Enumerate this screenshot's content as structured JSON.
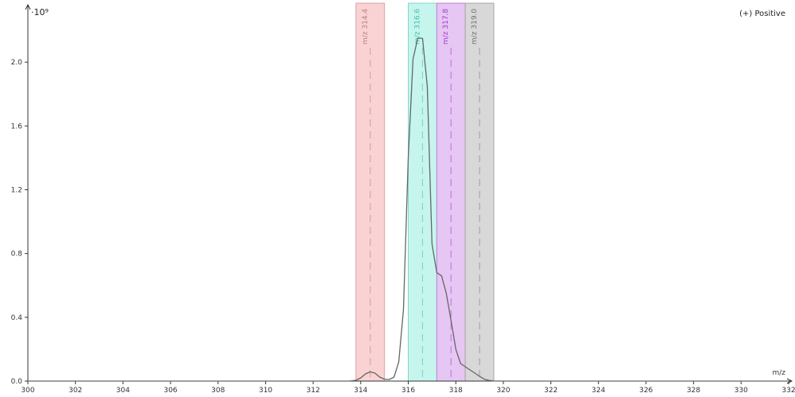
{
  "chart_data": {
    "type": "line",
    "title": "",
    "mode_label": "(+) Positive",
    "y_scale_label": "·10⁹",
    "xlabel": "m/z",
    "ylabel": "",
    "xlim": [
      300,
      332
    ],
    "ylim": [
      0,
      2.36
    ],
    "x_ticks": [
      300,
      302,
      304,
      306,
      308,
      310,
      312,
      314,
      316,
      318,
      320,
      322,
      324,
      326,
      328,
      330,
      332
    ],
    "y_ticks": [
      0.0,
      0.4,
      0.8,
      1.2,
      1.6,
      2.0
    ],
    "x_tick_labels": [
      "300",
      "302",
      "304",
      "306",
      "308",
      "310",
      "312",
      "314",
      "316",
      "318",
      "320",
      "322",
      "324",
      "326",
      "328",
      "330",
      "332"
    ],
    "y_tick_labels": [
      "0.0",
      "0.4",
      "0.8",
      "1.2",
      "1.6",
      "2.0"
    ],
    "grid": false,
    "bands": [
      {
        "label": "m/z 314.4",
        "center": 314.4,
        "from": 313.8,
        "to": 315.0,
        "fill": "#f9d3d3",
        "stroke": "#e0a0a0",
        "text_color": "#c08080"
      },
      {
        "label": "m/z 316.6",
        "center": 316.6,
        "from": 316.0,
        "to": 317.2,
        "fill": "#c6f5ee",
        "stroke": "#7fd9c9",
        "text_color": "#3fbfaa"
      },
      {
        "label": "m/z 317.8",
        "center": 317.8,
        "from": 317.2,
        "to": 318.4,
        "fill": "#e6c6f2",
        "stroke": "#c080e0",
        "text_color": "#a040d0"
      },
      {
        "label": "m/z 319.0",
        "center": 319.0,
        "from": 318.4,
        "to": 319.6,
        "fill": "#d8d8d8",
        "stroke": "#a8a8a8",
        "text_color": "#707070"
      }
    ],
    "series": [
      {
        "color": "#666666",
        "x": [
          300,
          313.5,
          313.8,
          314.0,
          314.2,
          314.4,
          314.6,
          314.8,
          315.0,
          315.2,
          315.4,
          315.6,
          315.8,
          316.0,
          316.2,
          316.4,
          316.6,
          316.8,
          317.0,
          317.2,
          317.4,
          317.6,
          317.8,
          318.0,
          318.2,
          318.4,
          318.6,
          318.8,
          319.0,
          319.2,
          319.4,
          319.6,
          320,
          332
        ],
        "y": [
          0,
          0,
          0.005,
          0.02,
          0.045,
          0.058,
          0.05,
          0.025,
          0.012,
          0.01,
          0.025,
          0.12,
          0.45,
          1.4,
          2.02,
          2.15,
          2.15,
          1.85,
          0.86,
          0.68,
          0.66,
          0.55,
          0.38,
          0.2,
          0.11,
          0.09,
          0.07,
          0.05,
          0.03,
          0.012,
          0.004,
          0.001,
          0,
          0
        ]
      }
    ]
  }
}
